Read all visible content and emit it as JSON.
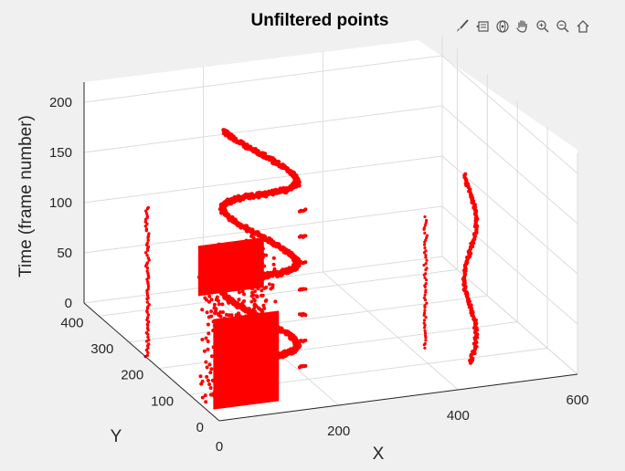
{
  "toolbar": {
    "icons": [
      "brush-icon",
      "data-tip-icon",
      "rotate-3d-icon",
      "pan-hand-icon",
      "zoom-in-icon",
      "zoom-out-icon",
      "home-icon"
    ]
  },
  "colors": {
    "points": "#ff0000",
    "background": "#f0f0f0",
    "axes_face": "#ffffff",
    "grid": "#dcdcdc",
    "axis_line": "#262626"
  },
  "chart_data": {
    "type": "scatter",
    "title": "Unfiltered points",
    "xlabel": "X",
    "ylabel": "Y",
    "zlabel": "Time (frame number)",
    "xlim": [
      0,
      600
    ],
    "ylim": [
      0,
      450
    ],
    "zlim": [
      0,
      220
    ],
    "xticks": [
      0,
      200,
      400,
      600
    ],
    "yticks": [
      0,
      100,
      200,
      300,
      400
    ],
    "zticks": [
      0,
      50,
      100,
      150,
      200
    ],
    "grid": true,
    "projection": "3d",
    "series": [
      {
        "color": "#ff0000",
        "approx_clusters": [
          {
            "shape": "thin vertical column",
            "x": 0,
            "y": 240,
            "z": [
              0,
              150
            ]
          },
          {
            "shape": "dense block",
            "x": [
              10,
              120
            ],
            "y": [
              40,
              90
            ],
            "z": [
              0,
              150
            ]
          },
          {
            "shape": "thin vertical column",
            "x": 95,
            "y": 75,
            "z": [
              0,
              160
            ]
          },
          {
            "shape": "zigzag trajectory",
            "x": [
              115,
              200
            ],
            "y": [
              140,
              220
            ],
            "z": [
              0,
              220
            ]
          },
          {
            "shape": "sparse dashes",
            "x": 205,
            "y": 140,
            "z": [
              0,
              170
            ]
          },
          {
            "shape": "wavy vertical column",
            "x": 460,
            "y": 80,
            "z": [
              0,
              190
            ]
          },
          {
            "shape": "thin vertical column",
            "x": 420,
            "y": 150,
            "z": [
              0,
              130
            ]
          }
        ]
      }
    ]
  }
}
